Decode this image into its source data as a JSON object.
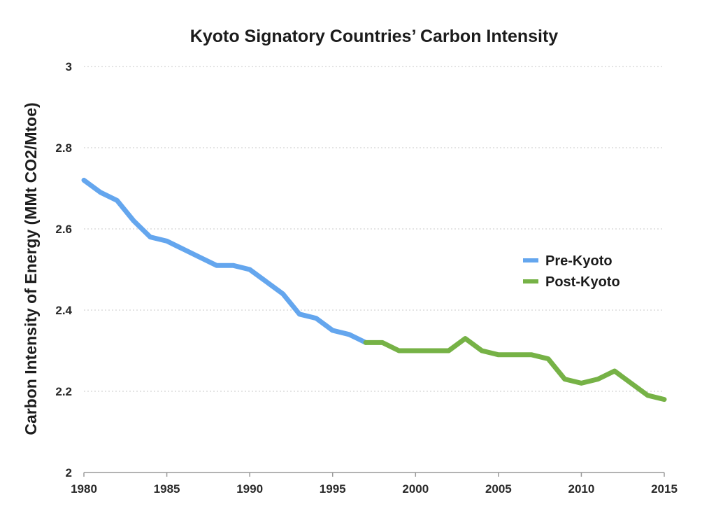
{
  "chart_data": {
    "type": "line",
    "title": "Kyoto Signatory Countries’ Carbon Intensity",
    "xlabel": "",
    "ylabel": "Carbon Intensity of Energy (MMt CO2/Mtoe)",
    "xlim": [
      1980,
      2015
    ],
    "ylim": [
      2,
      3
    ],
    "xticks": [
      "1980",
      "1985",
      "1990",
      "1995",
      "2000",
      "2005",
      "2010",
      "2015"
    ],
    "yticks": [
      "2",
      "2.2",
      "2.4",
      "2.6",
      "2.8",
      "3"
    ],
    "grid": true,
    "legend_position": "right",
    "series": [
      {
        "name": "Pre-Kyoto",
        "color": "#64a6ee",
        "x": [
          1980,
          1981,
          1982,
          1983,
          1984,
          1985,
          1986,
          1987,
          1988,
          1989,
          1990,
          1991,
          1992,
          1993,
          1994,
          1995,
          1996,
          1997
        ],
        "y": [
          2.72,
          2.69,
          2.67,
          2.62,
          2.58,
          2.57,
          2.55,
          2.53,
          2.51,
          2.51,
          2.5,
          2.47,
          2.44,
          2.39,
          2.38,
          2.35,
          2.34,
          2.32
        ]
      },
      {
        "name": "Post-Kyoto",
        "color": "#76b246",
        "x": [
          1997,
          1998,
          1999,
          2000,
          2001,
          2002,
          2003,
          2004,
          2005,
          2006,
          2007,
          2008,
          2009,
          2010,
          2011,
          2012,
          2013,
          2014,
          2015
        ],
        "y": [
          2.32,
          2.32,
          2.3,
          2.3,
          2.3,
          2.3,
          2.33,
          2.3,
          2.29,
          2.29,
          2.29,
          2.28,
          2.23,
          2.22,
          2.23,
          2.25,
          2.22,
          2.19,
          2.18
        ]
      }
    ]
  }
}
